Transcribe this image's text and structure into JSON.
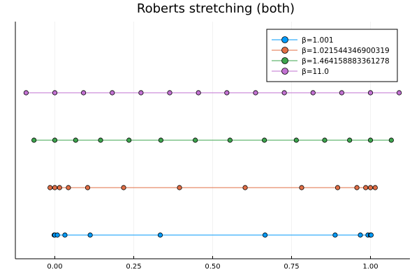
{
  "chart_data": {
    "type": "scatter",
    "title": "Roberts stretching (both)",
    "xlabel": "",
    "ylabel": "",
    "xlim": [
      -0.125,
      1.125
    ],
    "ylim": [
      0.5,
      5.5
    ],
    "x_ticks": [
      0.0,
      0.25,
      0.5,
      0.75,
      1.0
    ],
    "x_tick_labels": [
      "0.00",
      "0.25",
      "0.50",
      "0.75",
      "1.00"
    ],
    "grid": true,
    "legend_position": "top-right",
    "series": [
      {
        "name": "β=1.001",
        "color": "#009AFA",
        "y": 1,
        "x": [
          -0.002,
          0.0,
          0.008,
          0.032,
          0.112,
          0.334,
          0.666,
          0.888,
          0.968,
          0.992,
          1.0,
          1.002
        ]
      },
      {
        "name": "β=1.021544346900319",
        "color": "#E26F46",
        "y": 2,
        "x": [
          -0.015,
          0.0,
          0.015,
          0.043,
          0.104,
          0.218,
          0.395,
          0.603,
          0.782,
          0.896,
          0.957,
          0.985,
          1.0,
          1.015
        ]
      },
      {
        "name": "β=1.464158883361278",
        "color": "#3DA44D",
        "y": 3,
        "x": [
          -0.066,
          0.0,
          0.066,
          0.145,
          0.235,
          0.336,
          0.445,
          0.555,
          0.664,
          0.765,
          0.855,
          0.934,
          1.0,
          1.066
        ]
      },
      {
        "name": "β=11.0",
        "color": "#C271D2",
        "y": 4,
        "x": [
          -0.091,
          0.0,
          0.091,
          0.182,
          0.273,
          0.364,
          0.455,
          0.545,
          0.636,
          0.727,
          0.818,
          0.909,
          1.0,
          1.091
        ]
      }
    ]
  }
}
